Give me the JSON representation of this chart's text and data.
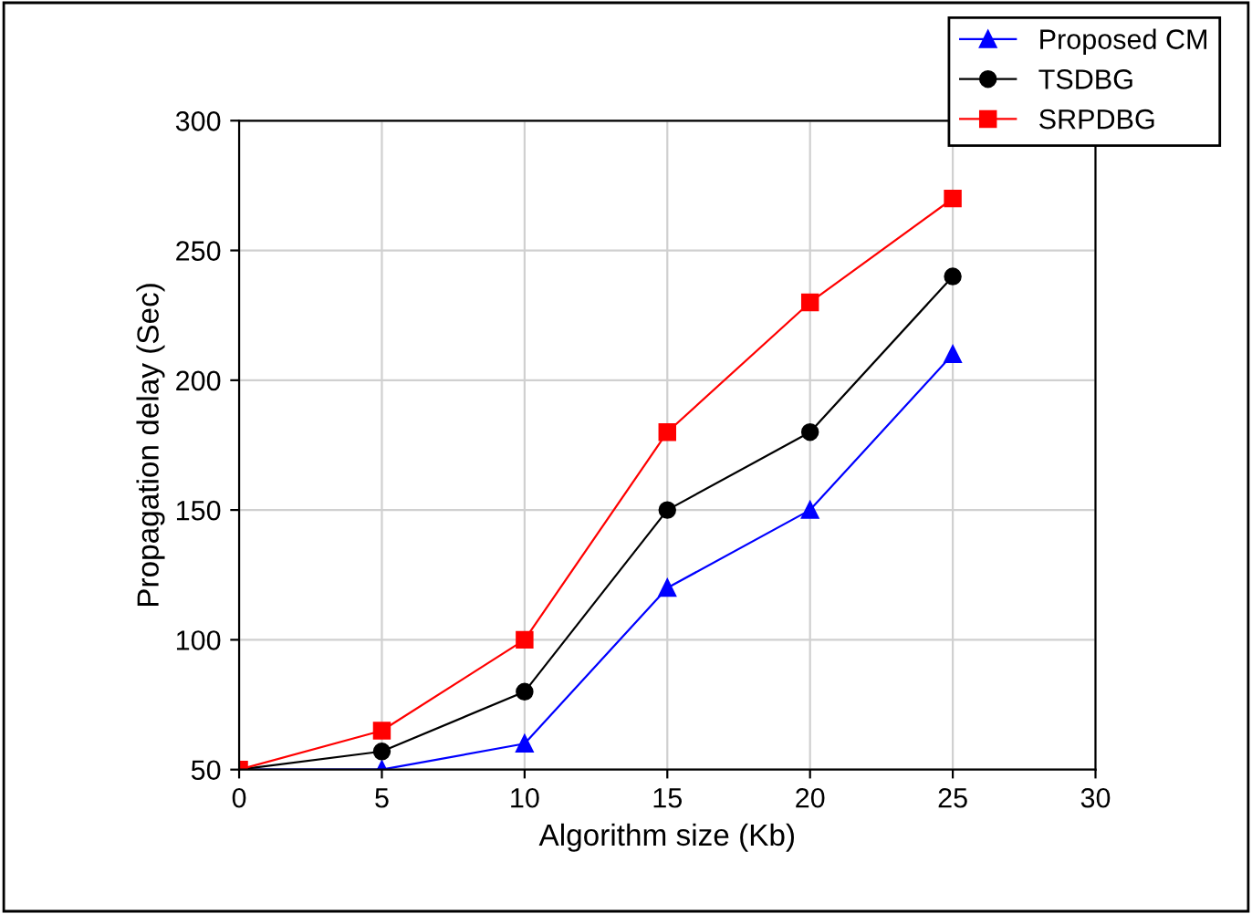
{
  "chart_data": {
    "type": "line",
    "xlabel": "Algorithm size (Kb)",
    "ylabel": "Propagation delay (Sec)",
    "x": [
      0,
      5,
      10,
      15,
      20,
      25
    ],
    "series": [
      {
        "name": "Proposed CM",
        "color": "#0000ff",
        "marker": "triangle",
        "values": [
          50,
          50,
          60,
          120,
          150,
          210
        ]
      },
      {
        "name": "TSDBG",
        "color": "#000000",
        "marker": "circle",
        "values": [
          50,
          57,
          80,
          150,
          180,
          240
        ]
      },
      {
        "name": "SRPDBG",
        "color": "#ff0000",
        "marker": "square",
        "values": [
          50,
          65,
          100,
          180,
          230,
          270
        ]
      }
    ],
    "xlim": [
      0,
      30
    ],
    "xticks": [
      0,
      5,
      10,
      15,
      20,
      25,
      30
    ],
    "ylim": [
      50,
      300
    ],
    "yticks": [
      50,
      100,
      150,
      200,
      250,
      300
    ],
    "grid": true,
    "legend": "top right",
    "line_style": "solid"
  }
}
